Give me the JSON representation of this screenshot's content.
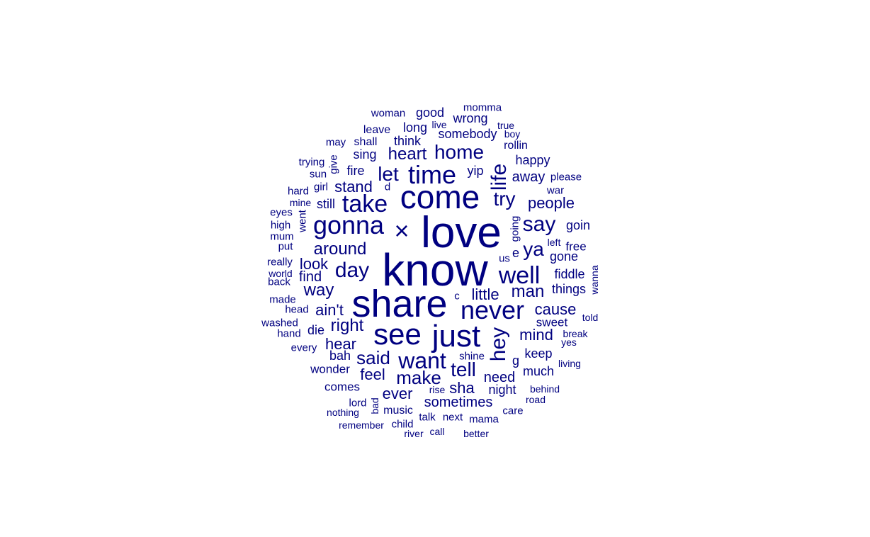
{
  "color": "#000080",
  "words": [
    {
      "t": "know"
    },
    {
      "t": "love"
    },
    {
      "t": "share"
    },
    {
      "t": "come"
    },
    {
      "t": "see"
    },
    {
      "t": "just"
    },
    {
      "t": "never"
    },
    {
      "t": "time"
    },
    {
      "t": "gonna"
    },
    {
      "t": "take"
    },
    {
      "t": "want"
    },
    {
      "t": "well"
    },
    {
      "t": "×"
    },
    {
      "t": "hey"
    },
    {
      "t": "life"
    },
    {
      "t": "day"
    },
    {
      "t": "say"
    },
    {
      "t": "tell"
    },
    {
      "t": "home"
    },
    {
      "t": "let"
    },
    {
      "t": "ya"
    },
    {
      "t": "make"
    },
    {
      "t": "try"
    },
    {
      "t": "said"
    },
    {
      "t": "around"
    },
    {
      "t": "heart"
    },
    {
      "t": "right"
    },
    {
      "t": "man"
    },
    {
      "t": "way"
    },
    {
      "t": "people"
    },
    {
      "t": "mind"
    },
    {
      "t": "cause"
    },
    {
      "t": "look"
    },
    {
      "t": "hear"
    },
    {
      "t": "little"
    },
    {
      "t": "stand"
    },
    {
      "t": "feel"
    },
    {
      "t": "ever"
    },
    {
      "t": "ain't"
    },
    {
      "t": "need"
    },
    {
      "t": "sha"
    },
    {
      "t": "sometimes"
    },
    {
      "t": "away"
    },
    {
      "t": "find"
    },
    {
      "t": "things"
    },
    {
      "t": "fiddle"
    },
    {
      "t": "keep"
    },
    {
      "t": "fire"
    },
    {
      "t": "yip"
    },
    {
      "t": "somebody"
    },
    {
      "t": "wrong"
    },
    {
      "t": "happy"
    },
    {
      "t": "long"
    },
    {
      "t": "think"
    },
    {
      "t": "sing"
    },
    {
      "t": "good"
    },
    {
      "t": "gone"
    },
    {
      "t": "goin"
    },
    {
      "t": "still"
    },
    {
      "t": "much"
    },
    {
      "t": "night"
    },
    {
      "t": "wonder"
    },
    {
      "t": "comes"
    },
    {
      "t": "music"
    },
    {
      "t": "sweet"
    },
    {
      "t": "bah"
    },
    {
      "t": "die"
    },
    {
      "t": "g"
    },
    {
      "t": "e"
    },
    {
      "t": "free"
    },
    {
      "t": "woman"
    },
    {
      "t": "leave"
    },
    {
      "t": "shall"
    },
    {
      "t": "rollin"
    },
    {
      "t": "momma"
    },
    {
      "t": "may"
    },
    {
      "t": "trying"
    },
    {
      "t": "give"
    },
    {
      "t": "sun"
    },
    {
      "t": "girl"
    },
    {
      "t": "hard"
    },
    {
      "t": "d"
    },
    {
      "t": "please"
    },
    {
      "t": "war"
    },
    {
      "t": "mine"
    },
    {
      "t": "eyes"
    },
    {
      "t": "went"
    },
    {
      "t": "high"
    },
    {
      "t": "going"
    },
    {
      "t": "mum"
    },
    {
      "t": "put"
    },
    {
      "t": "left"
    },
    {
      "t": "really"
    },
    {
      "t": "us"
    },
    {
      "t": "world"
    },
    {
      "t": "back"
    },
    {
      "t": "wanna"
    },
    {
      "t": "made"
    },
    {
      "t": "c"
    },
    {
      "t": "head"
    },
    {
      "t": "told"
    },
    {
      "t": "washed"
    },
    {
      "t": "hand"
    },
    {
      "t": "break"
    },
    {
      "t": "yes"
    },
    {
      "t": "every"
    },
    {
      "t": "shine"
    },
    {
      "t": "living"
    },
    {
      "t": "behind"
    },
    {
      "t": "rise"
    },
    {
      "t": "road"
    },
    {
      "t": "lord"
    },
    {
      "t": "bad"
    },
    {
      "t": "nothing"
    },
    {
      "t": "care"
    },
    {
      "t": "talk"
    },
    {
      "t": "next"
    },
    {
      "t": "mama"
    },
    {
      "t": "remember"
    },
    {
      "t": "child"
    },
    {
      "t": "river"
    },
    {
      "t": "call"
    },
    {
      "t": "better"
    },
    {
      "t": "live"
    },
    {
      "t": "true"
    },
    {
      "t": "boy"
    }
  ]
}
